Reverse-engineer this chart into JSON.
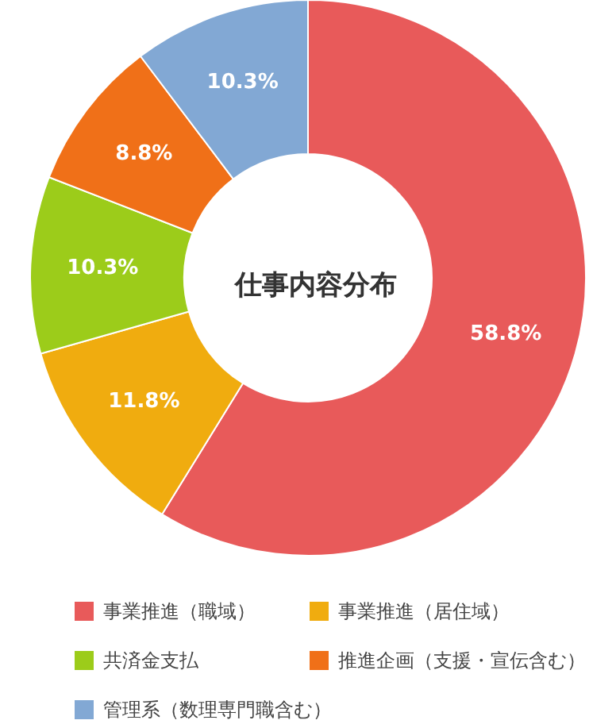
{
  "chart_data": {
    "type": "donut",
    "title": "仕事内容分布",
    "categories": [
      "事業推進（職域）",
      "事業推進（居住域）",
      "共済金支払",
      "推進企画（支援・宣伝含む）",
      "管理系（数理専門職含む）"
    ],
    "values": [
      58.8,
      11.8,
      10.3,
      8.8,
      10.3
    ],
    "value_labels": [
      "58.8%",
      "11.8%",
      "10.3%",
      "8.8%",
      "10.3%"
    ],
    "colors": [
      "#e85a5a",
      "#f0ac0f",
      "#9ccc1a",
      "#f07018",
      "#82a8d4"
    ],
    "legend": "bottom"
  }
}
